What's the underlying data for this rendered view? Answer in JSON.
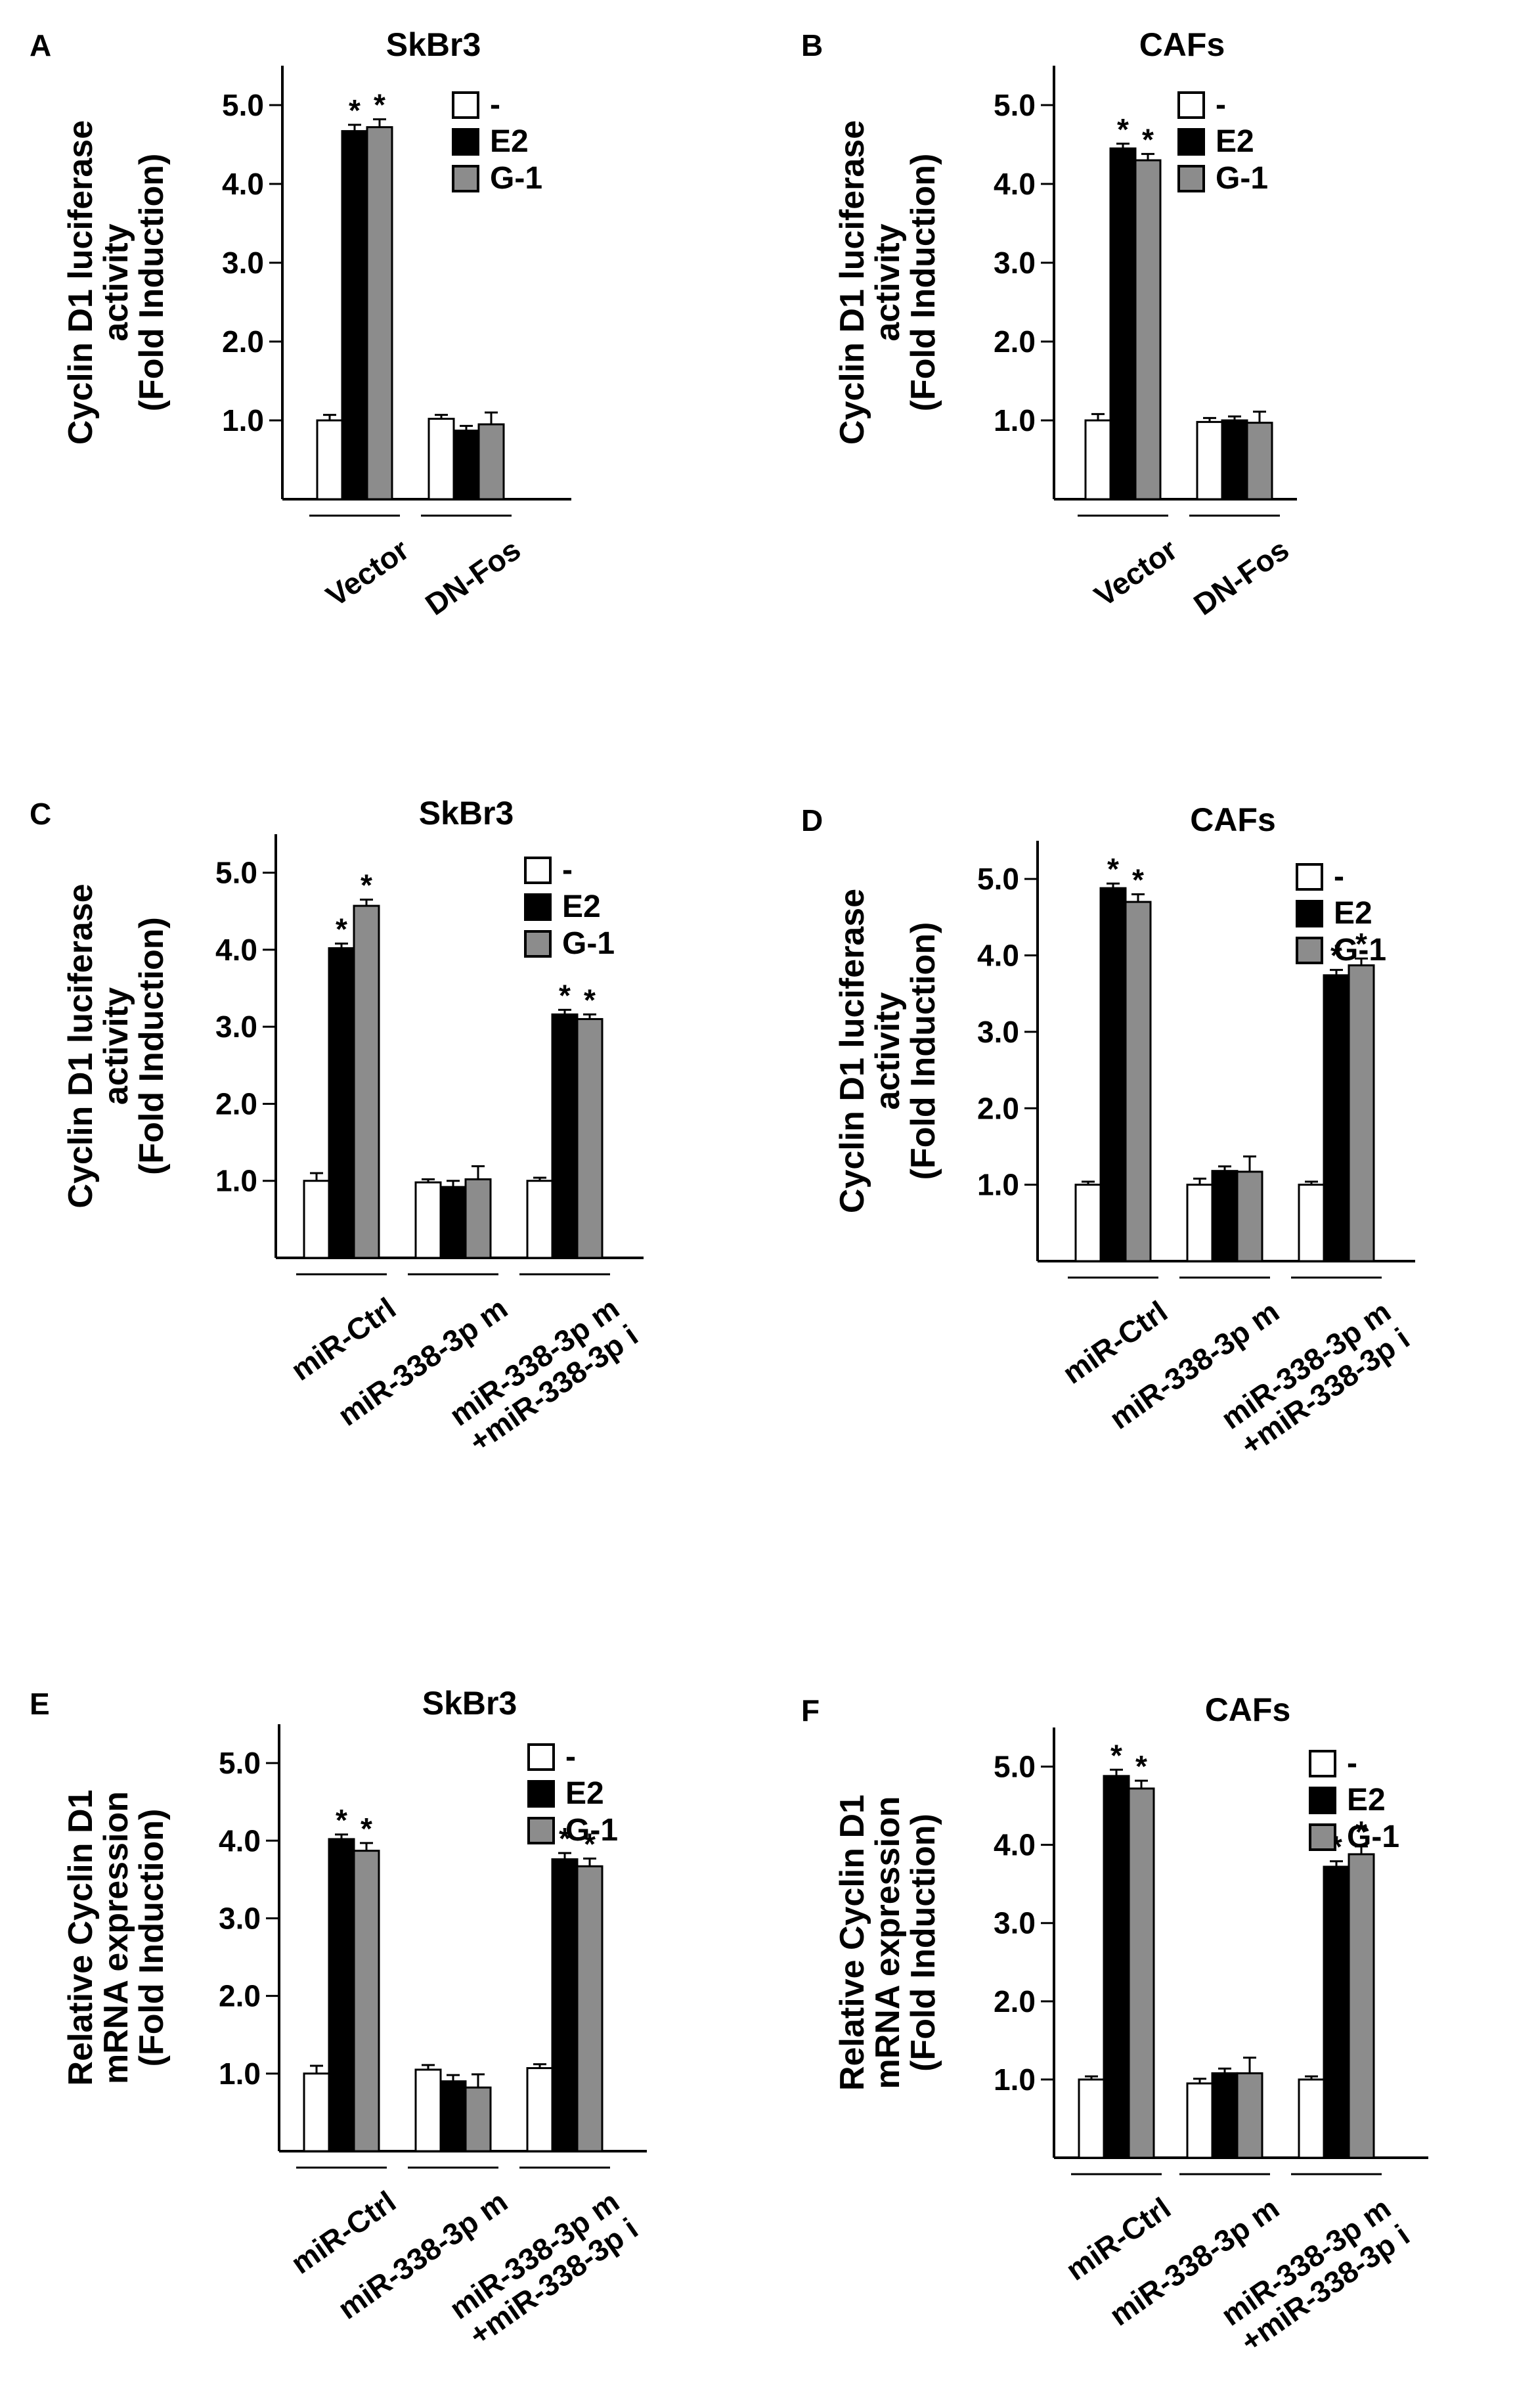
{
  "figure": {
    "legend": [
      {
        "label": "-",
        "color": "#ffffff"
      },
      {
        "label": "E2",
        "color": "#000000"
      },
      {
        "label": "G-1",
        "color": "#8c8c8c"
      }
    ],
    "significance_marker": "*"
  },
  "chart_data": [
    {
      "panel": "A",
      "type": "bar",
      "title": "SkBr3",
      "ylabel": [
        "Cyclin D1 luciferase",
        "activity",
        "(Fold Induction)"
      ],
      "yticks": [
        "1.0",
        "2.0",
        "3.0",
        "4.0",
        "5.0"
      ],
      "ylim": [
        0,
        5.5
      ],
      "categories": [
        [
          "Vector"
        ],
        [
          "DN-Fos"
        ]
      ],
      "series": [
        {
          "name": "-",
          "values": [
            1.0,
            1.02
          ],
          "errors": [
            0.07,
            0.05
          ],
          "significant": [
            false,
            false
          ]
        },
        {
          "name": "E2",
          "values": [
            4.67,
            0.87
          ],
          "errors": [
            0.08,
            0.06
          ],
          "significant": [
            true,
            false
          ]
        },
        {
          "name": "G-1",
          "values": [
            4.72,
            0.95
          ],
          "errors": [
            0.1,
            0.15
          ],
          "significant": [
            true,
            false
          ]
        }
      ]
    },
    {
      "panel": "B",
      "type": "bar",
      "title": "CAFs",
      "ylabel": [
        "Cyclin D1 luciferase",
        "activity",
        "(Fold Induction)"
      ],
      "yticks": [
        "1.0",
        "2.0",
        "3.0",
        "4.0",
        "5.0"
      ],
      "ylim": [
        0,
        5.5
      ],
      "categories": [
        [
          "Vector"
        ],
        [
          "DN-Fos"
        ]
      ],
      "series": [
        {
          "name": "-",
          "values": [
            1.0,
            0.98
          ],
          "errors": [
            0.08,
            0.05
          ],
          "significant": [
            false,
            false
          ]
        },
        {
          "name": "E2",
          "values": [
            4.45,
            1.0
          ],
          "errors": [
            0.06,
            0.05
          ],
          "significant": [
            true,
            false
          ]
        },
        {
          "name": "G-1",
          "values": [
            4.3,
            0.97
          ],
          "errors": [
            0.08,
            0.14
          ],
          "significant": [
            true,
            false
          ]
        }
      ]
    },
    {
      "panel": "C",
      "type": "bar",
      "title": "SkBr3",
      "ylabel": [
        "Cyclin D1 luciferase",
        "activity",
        "(Fold Induction)"
      ],
      "yticks": [
        "1.0",
        "2.0",
        "3.0",
        "4.0",
        "5.0"
      ],
      "ylim": [
        0,
        5.5
      ],
      "categories": [
        [
          "miR-Ctrl"
        ],
        [
          "miR-338-3p m"
        ],
        [
          "miR-338-3p m",
          "+miR-338-3p i"
        ]
      ],
      "series": [
        {
          "name": "-",
          "values": [
            1.0,
            0.98,
            1.0
          ],
          "errors": [
            0.1,
            0.04,
            0.04
          ],
          "significant": [
            false,
            false,
            false
          ]
        },
        {
          "name": "E2",
          "values": [
            4.02,
            0.92,
            3.16
          ],
          "errors": [
            0.06,
            0.08,
            0.06
          ],
          "significant": [
            true,
            false,
            true
          ]
        },
        {
          "name": "G-1",
          "values": [
            4.57,
            1.02,
            3.1
          ],
          "errors": [
            0.08,
            0.17,
            0.06
          ],
          "significant": [
            true,
            false,
            true
          ]
        }
      ]
    },
    {
      "panel": "D",
      "type": "bar",
      "title": "CAFs",
      "ylabel": [
        "Cyclin D1 luciferase",
        "activity",
        "(Fold Induction)"
      ],
      "yticks": [
        "1.0",
        "2.0",
        "3.0",
        "4.0",
        "5.0"
      ],
      "ylim": [
        0,
        5.5
      ],
      "categories": [
        [
          "miR-Ctrl"
        ],
        [
          "miR-338-3p m"
        ],
        [
          "miR-338-3p m",
          "+miR-338-3p i"
        ]
      ],
      "series": [
        {
          "name": "-",
          "values": [
            1.0,
            1.0,
            1.0
          ],
          "errors": [
            0.04,
            0.08,
            0.04
          ],
          "significant": [
            false,
            false,
            false
          ]
        },
        {
          "name": "E2",
          "values": [
            4.88,
            1.18,
            3.74
          ],
          "errors": [
            0.06,
            0.06,
            0.07
          ],
          "significant": [
            true,
            false,
            true
          ]
        },
        {
          "name": "G-1",
          "values": [
            4.7,
            1.17,
            3.87
          ],
          "errors": [
            0.1,
            0.2,
            0.09
          ],
          "significant": [
            true,
            false,
            true
          ]
        }
      ]
    },
    {
      "panel": "E",
      "type": "bar",
      "title": "SkBr3",
      "ylabel": [
        "Relative Cyclin D1",
        "mRNA expression",
        "(Fold Induction)"
      ],
      "yticks": [
        "1.0",
        "2.0",
        "3.0",
        "4.0",
        "5.0"
      ],
      "ylim": [
        0,
        5.5
      ],
      "categories": [
        [
          "miR-Ctrl"
        ],
        [
          "miR-338-3p m"
        ],
        [
          "miR-338-3p m",
          "+miR-338-3p i"
        ]
      ],
      "series": [
        {
          "name": "-",
          "values": [
            1.0,
            1.05,
            1.07
          ],
          "errors": [
            0.1,
            0.06,
            0.05
          ],
          "significant": [
            false,
            false,
            false
          ]
        },
        {
          "name": "E2",
          "values": [
            4.02,
            0.9,
            3.76
          ],
          "errors": [
            0.06,
            0.08,
            0.08
          ],
          "significant": [
            true,
            false,
            true
          ]
        },
        {
          "name": "G-1",
          "values": [
            3.87,
            0.82,
            3.67
          ],
          "errors": [
            0.1,
            0.17,
            0.1
          ],
          "significant": [
            true,
            false,
            true
          ]
        }
      ]
    },
    {
      "panel": "F",
      "type": "bar",
      "title": "CAFs",
      "ylabel": [
        "Relative Cyclin D1",
        "mRNA expression",
        "(Fold Induction)"
      ],
      "yticks": [
        "1.0",
        "2.0",
        "3.0",
        "4.0",
        "5.0"
      ],
      "ylim": [
        0,
        5.5
      ],
      "categories": [
        [
          "miR-Ctrl"
        ],
        [
          "miR-338-3p m"
        ],
        [
          "miR-338-3p m",
          "+miR-338-3p i"
        ]
      ],
      "series": [
        {
          "name": "-",
          "values": [
            1.0,
            0.95,
            1.0
          ],
          "errors": [
            0.04,
            0.06,
            0.04
          ],
          "significant": [
            false,
            false,
            false
          ]
        },
        {
          "name": "E2",
          "values": [
            4.88,
            1.08,
            3.72
          ],
          "errors": [
            0.08,
            0.06,
            0.07
          ],
          "significant": [
            true,
            false,
            true
          ]
        },
        {
          "name": "G-1",
          "values": [
            4.72,
            1.08,
            3.88
          ],
          "errors": [
            0.1,
            0.2,
            0.1
          ],
          "significant": [
            true,
            false,
            true
          ]
        }
      ]
    }
  ]
}
